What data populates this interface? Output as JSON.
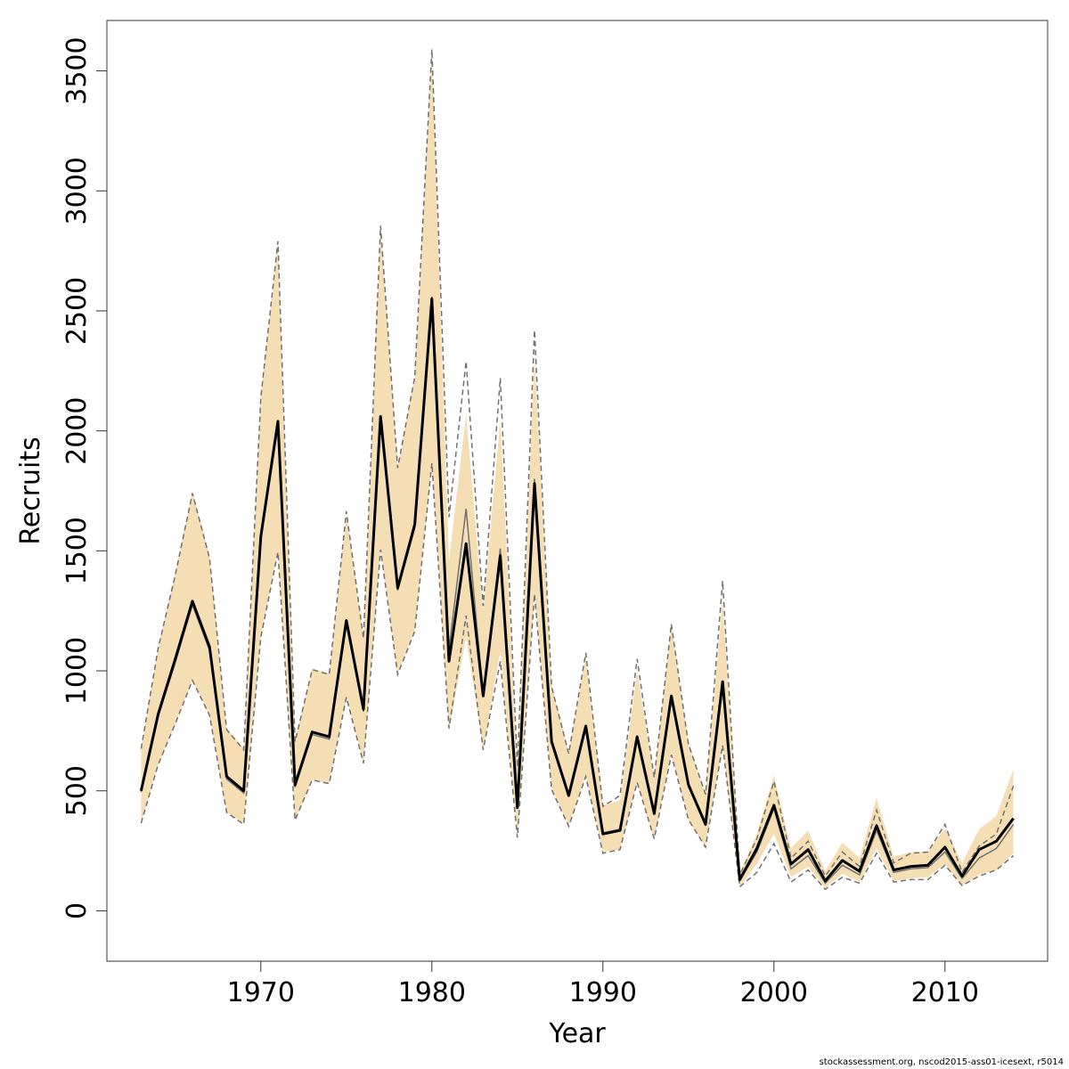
{
  "chart_data": {
    "type": "line",
    "xlabel": "Year",
    "ylabel": "Recruits",
    "xlim": [
      1961,
      2016
    ],
    "ylim": [
      -210,
      3710
    ],
    "xticks": [
      1970,
      1980,
      1990,
      2000,
      2010
    ],
    "yticks": [
      0,
      500,
      1000,
      1500,
      2000,
      2500,
      3000,
      3500
    ],
    "grid": false,
    "colors": {
      "band": "#f5deb3",
      "estimate": "#000000",
      "previous": "#707070"
    },
    "years": [
      1963,
      1964,
      1965,
      1966,
      1967,
      1968,
      1969,
      1970,
      1971,
      1972,
      1973,
      1974,
      1975,
      1976,
      1977,
      1978,
      1979,
      1980,
      1981,
      1982,
      1983,
      1984,
      1985,
      1986,
      1987,
      1988,
      1989,
      1990,
      1991,
      1992,
      1993,
      1994,
      1995,
      1996,
      1997,
      1998,
      1999,
      2000,
      2001,
      2002,
      2003,
      2004,
      2005,
      2006,
      2007,
      2008,
      2009,
      2010,
      2011,
      2012,
      2013,
      2014
    ],
    "series": [
      {
        "role": "estimate",
        "values": [
          500,
          820,
          1050,
          1290,
          1100,
          560,
          500,
          1560,
          2040,
          525,
          745,
          725,
          1210,
          840,
          2060,
          1345,
          1610,
          2550,
          1040,
          1530,
          895,
          1480,
          430,
          1780,
          705,
          480,
          770,
          320,
          335,
          725,
          405,
          895,
          525,
          360,
          955,
          130,
          260,
          440,
          195,
          255,
          125,
          210,
          165,
          355,
          170,
          185,
          190,
          265,
          145,
          255,
          290,
          385
        ]
      },
      {
        "role": "previous",
        "values": [
          495,
          810,
          1035,
          1275,
          1085,
          550,
          490,
          1545,
          2020,
          515,
          735,
          715,
          1195,
          830,
          2040,
          1335,
          1595,
          2560,
          1090,
          1675,
          900,
          1510,
          445,
          1800,
          710,
          485,
          775,
          325,
          340,
          730,
          410,
          900,
          530,
          365,
          960,
          125,
          245,
          425,
          175,
          230,
          115,
          190,
          150,
          335,
          160,
          175,
          180,
          245,
          135,
          220,
          260,
          360
        ]
      },
      {
        "role": "upper",
        "values": [
          680,
          1100,
          1410,
          1750,
          1480,
          760,
          680,
          2150,
          2780,
          710,
          1010,
          990,
          1660,
          1140,
          2850,
          1850,
          2230,
          3580,
          1460,
          2070,
          1250,
          2050,
          590,
          2320,
          940,
          660,
          1060,
          440,
          460,
          1000,
          555,
          1190,
          700,
          490,
          1300,
          160,
          320,
          565,
          260,
          335,
          165,
          285,
          220,
          470,
          225,
          245,
          245,
          345,
          200,
          340,
          395,
          590
        ]
      },
      {
        "role": "lower",
        "values": [
          365,
          610,
          780,
          960,
          815,
          410,
          365,
          1140,
          1500,
          380,
          545,
          530,
          890,
          615,
          1510,
          990,
          1170,
          1870,
          750,
          1140,
          670,
          1080,
          310,
          1330,
          510,
          355,
          565,
          245,
          255,
          535,
          300,
          655,
          380,
          265,
          690,
          100,
          195,
          320,
          140,
          185,
          95,
          155,
          120,
          260,
          125,
          135,
          140,
          195,
          105,
          150,
          170,
          240
        ]
      },
      {
        "role": "upper-dashed",
        "values": [
          675,
          1095,
          1400,
          1740,
          1470,
          755,
          670,
          2140,
          2790,
          705,
          1005,
          985,
          1665,
          1135,
          2855,
          1845,
          2225,
          3590,
          1640,
          2290,
          1270,
          2220,
          600,
          2420,
          935,
          655,
          1075,
          435,
          480,
          1050,
          555,
          1195,
          695,
          485,
          1375,
          150,
          300,
          540,
          220,
          290,
          145,
          245,
          185,
          420,
          200,
          240,
          245,
          360,
          160,
          270,
          320,
          520
        ]
      },
      {
        "role": "lower-dashed",
        "values": [
          365,
          610,
          780,
          960,
          815,
          410,
          360,
          1140,
          1495,
          378,
          545,
          530,
          890,
          615,
          1505,
          985,
          1165,
          1865,
          760,
          1230,
          670,
          1040,
          305,
          1320,
          505,
          352,
          560,
          240,
          255,
          535,
          300,
          650,
          380,
          265,
          690,
          100,
          160,
          280,
          120,
          170,
          90,
          140,
          115,
          240,
          120,
          130,
          130,
          190,
          105,
          145,
          170,
          230
        ]
      }
    ]
  },
  "footer": "stockassessment.org, nscod2015-ass01-icesext, r5014"
}
